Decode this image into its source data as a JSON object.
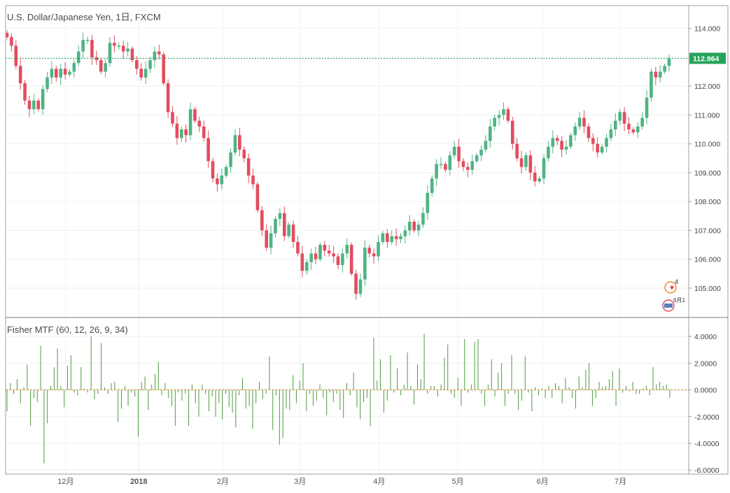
{
  "main_title": "U.S. Dollar/Japanese Yen, 1日, FXCM",
  "indicator_title": "Fisher MTF (60, 12, 26, 9, 34)",
  "price_badge": "112.964",
  "event_badges": [
    "4",
    "6月1"
  ],
  "colors": {
    "up": "#4fb384",
    "down": "#e24d5f",
    "indicator": "#4d9b3e",
    "zero_line": "#d4892f",
    "last_price_line": "#26a35a",
    "grid": "#eef0f2"
  },
  "chart_data": [
    {
      "type": "candlestick",
      "title": "U.S. Dollar/Japanese Yen, 1日, FXCM",
      "x_tick_labels": [
        "12月",
        "2018",
        "2月",
        "3月",
        "4月",
        "5月",
        "6月",
        "7月"
      ],
      "y_ticks": [
        105,
        106,
        107,
        108,
        109,
        110,
        111,
        112,
        113,
        114
      ],
      "ylim": [
        104.2,
        114.5
      ],
      "last_price": 112.964,
      "grid": true,
      "closes": [
        113.7,
        113.4,
        112.7,
        112.1,
        111.5,
        111.2,
        111.5,
        111.2,
        111.9,
        112.3,
        112.6,
        112.3,
        112.6,
        112.4,
        112.5,
        112.8,
        113.2,
        113.6,
        113.6,
        113.0,
        112.9,
        112.5,
        112.8,
        113.5,
        113.4,
        113.4,
        113.2,
        113.3,
        112.9,
        112.6,
        112.3,
        112.6,
        112.9,
        113.2,
        113.1,
        112.1,
        111.1,
        110.7,
        110.2,
        110.5,
        110.3,
        111.2,
        110.8,
        110.6,
        110.2,
        109.4,
        108.8,
        108.6,
        108.9,
        109.2,
        109.7,
        110.3,
        109.8,
        109.5,
        108.9,
        108.6,
        107.7,
        107.0,
        106.4,
        106.9,
        107.4,
        107.6,
        106.8,
        107.2,
        106.6,
        106.2,
        105.6,
        105.9,
        106.2,
        106.0,
        106.5,
        106.3,
        106.2,
        106.1,
        105.8,
        106.2,
        106.5,
        105.5,
        104.8,
        105.3,
        106.4,
        106.2,
        106.1,
        106.6,
        106.9,
        106.6,
        106.8,
        106.7,
        106.8,
        107.0,
        107.3,
        107.0,
        107.2,
        107.6,
        108.3,
        108.8,
        109.3,
        109.3,
        109.1,
        109.6,
        109.9,
        109.4,
        109.2,
        109.1,
        109.4,
        109.6,
        109.8,
        110.1,
        110.6,
        110.9,
        111.0,
        111.2,
        110.8,
        110.0,
        109.5,
        109.2,
        109.6,
        109.0,
        108.7,
        108.8,
        109.5,
        109.9,
        110.2,
        110.1,
        109.8,
        109.9,
        110.3,
        110.6,
        110.9,
        110.6,
        110.2,
        110.0,
        109.7,
        109.9,
        110.2,
        110.5,
        110.8,
        111.1,
        110.7,
        110.5,
        110.4,
        110.6,
        110.9,
        111.6,
        112.5,
        112.3,
        112.5,
        112.7,
        112.96
      ]
    },
    {
      "type": "bar",
      "title": "Fisher MTF (60, 12, 26, 9, 34)",
      "y_ticks": [
        -6,
        -4,
        -2,
        0,
        2,
        4
      ],
      "ylim": [
        -6.2,
        5.0
      ],
      "zero_line": 0,
      "values": [
        -1.6,
        0.5,
        -0.3,
        0.8,
        -1.0,
        0.2,
        1.9,
        -2.7,
        -0.6,
        -0.9,
        3.3,
        -5.5,
        -2.5,
        0.3,
        1.7,
        3.1,
        0.3,
        -1.3,
        1.8,
        2.6,
        -0.2,
        -0.4,
        1.7,
        0.1,
        -0.2,
        4.0,
        -0.7,
        -0.3,
        3.5,
        0.2,
        -0.3,
        0.5,
        0.6,
        -2.4,
        -1.4,
        0.3,
        -1.2,
        -0.2,
        -0.5,
        -3.5,
        0.6,
        1.0,
        -1.5,
        0.4,
        1.2,
        2.1,
        -0.4,
        0.5,
        -0.6,
        -1.2,
        -2.7,
        -0.2,
        -0.8,
        -0.3,
        -2.7,
        0.4,
        -1.0,
        -2.0,
        0.4,
        -0.3,
        -1.6,
        -0.5,
        -2.0,
        -1.0,
        -2.2,
        -0.3,
        -1.3,
        -1.7,
        -2.8,
        -0.4,
        0.9,
        -1.4,
        -1.2,
        -2.9,
        -1.0,
        0.6,
        -0.7,
        -0.3,
        2.5,
        -3.0,
        -0.4,
        -4.1,
        -3.6,
        -1.4,
        -1.5,
        1.1,
        -1.0,
        0.7,
        2.0,
        -1.6,
        -0.3,
        -1.2,
        -0.8,
        0.4,
        -0.6,
        -1.9,
        -0.2,
        -0.9,
        -0.3,
        -1.5,
        -2.1,
        0.5,
        -0.4,
        1.3,
        -1.3,
        -2.2,
        -0.9,
        -0.6,
        -2.7,
        3.9,
        0.7,
        2.3,
        -1.7,
        -0.8,
        2.6,
        -0.2,
        1.6,
        -0.4,
        0.4,
        2.8,
        0.3,
        -1.1,
        1.9,
        0.8,
        4.2,
        -0.3,
        0.3,
        0.3,
        -0.5,
        0.4,
        2.4,
        3.4,
        -0.3,
        -0.6,
        0.9,
        -1.2,
        3.8,
        -0.2,
        0.4,
        3.6,
        3.8,
        -0.3,
        -1.2,
        0.4,
        2.3,
        -0.5,
        1.3,
        2.0,
        -1.2,
        -0.3,
        2.6,
        -0.3,
        -1.5,
        -0.8,
        2.5,
        -0.2,
        -1.6,
        0.2,
        -0.4,
        0.1,
        -0.6,
        0.3,
        -0.6,
        0.5,
        0.3,
        -1.0,
        0.9,
        0.2,
        -0.6,
        -1.4,
        1.0,
        0.2,
        1.5,
        2.0,
        -1.2,
        -0.6,
        0.6,
        0.2,
        0.3,
        0.8,
        1.4,
        -1.2,
        1.6,
        -0.2,
        0.3,
        -0.1,
        0.6,
        -0.3,
        -0.3,
        0.1,
        0.3,
        -0.4,
        1.7,
        0.4,
        0.6,
        0.3,
        0.4,
        -0.6
      ]
    }
  ]
}
